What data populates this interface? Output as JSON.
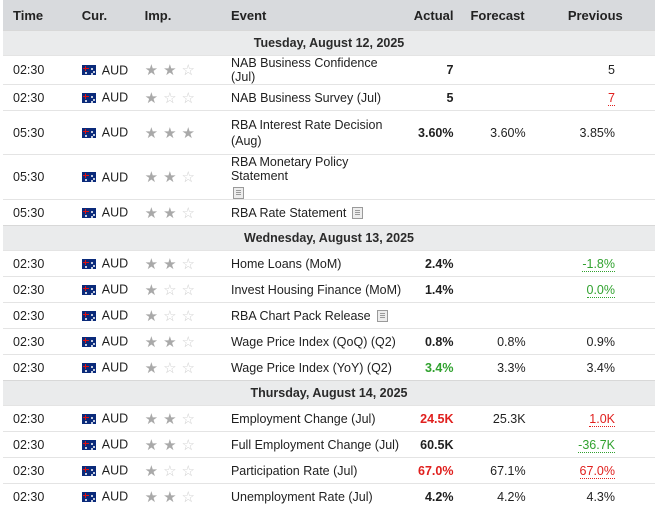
{
  "headers": {
    "time": "Time",
    "cur": "Cur.",
    "imp": "Imp.",
    "event": "Event",
    "actual": "Actual",
    "forecast": "Forecast",
    "previous": "Previous"
  },
  "colors": {
    "accent_red": "#e0201e",
    "accent_green": "#31a22f",
    "header_bg": "#d8dadd"
  },
  "days": [
    {
      "date": "Tuesday, August 12, 2025",
      "events": [
        {
          "time": "02:30",
          "cur": "AUD",
          "imp": 2,
          "event": "NAB Business Confidence (Jul)",
          "actual": "7",
          "forecast": "",
          "previous": "5"
        },
        {
          "time": "02:30",
          "cur": "AUD",
          "imp": 1,
          "event": "NAB Business Survey (Jul)",
          "actual": "5",
          "forecast": "",
          "previous": "7"
        },
        {
          "time": "05:30",
          "cur": "AUD",
          "imp": 3,
          "event": "RBA Interest Rate Decision",
          "event2": "(Aug)",
          "actual": "3.60%",
          "forecast": "3.60%",
          "previous": "3.85%"
        },
        {
          "time": "05:30",
          "cur": "AUD",
          "imp": 2,
          "event": "RBA Monetary Policy Statement",
          "event2": "",
          "actual": "",
          "forecast": "",
          "previous": ""
        },
        {
          "time": "05:30",
          "cur": "AUD",
          "imp": 2,
          "event": "RBA Rate Statement",
          "actual": "",
          "forecast": "",
          "previous": ""
        }
      ]
    },
    {
      "date": "Wednesday, August 13, 2025",
      "events": [
        {
          "time": "02:30",
          "cur": "AUD",
          "imp": 2,
          "event": "Home Loans (MoM)",
          "actual": "2.4%",
          "forecast": "",
          "previous": "-1.8%"
        },
        {
          "time": "02:30",
          "cur": "AUD",
          "imp": 1,
          "event": "Invest Housing Finance (MoM)",
          "actual": "1.4%",
          "forecast": "",
          "previous": "0.0%"
        },
        {
          "time": "02:30",
          "cur": "AUD",
          "imp": 1,
          "event": "RBA Chart Pack Release",
          "actual": "",
          "forecast": "",
          "previous": ""
        },
        {
          "time": "02:30",
          "cur": "AUD",
          "imp": 2,
          "event": "Wage Price Index (QoQ) (Q2)",
          "actual": "0.8%",
          "forecast": "0.8%",
          "previous": "0.9%"
        },
        {
          "time": "02:30",
          "cur": "AUD",
          "imp": 1,
          "event": "Wage Price Index (YoY) (Q2)",
          "actual": "3.4%",
          "forecast": "3.3%",
          "previous": "3.4%"
        }
      ]
    },
    {
      "date": "Thursday, August 14, 2025",
      "events": [
        {
          "time": "02:30",
          "cur": "AUD",
          "imp": 2,
          "event": "Employment Change (Jul)",
          "actual": "24.5K",
          "forecast": "25.3K",
          "previous": "1.0K"
        },
        {
          "time": "02:30",
          "cur": "AUD",
          "imp": 2,
          "event": "Full Employment Change (Jul)",
          "actual": "60.5K",
          "forecast": "",
          "previous": "-36.7K"
        },
        {
          "time": "02:30",
          "cur": "AUD",
          "imp": 1,
          "event": "Participation Rate (Jul)",
          "actual": "67.0%",
          "forecast": "67.1%",
          "previous": "67.0%"
        },
        {
          "time": "02:30",
          "cur": "AUD",
          "imp": 2,
          "event": "Unemployment Rate (Jul)",
          "actual": "4.2%",
          "forecast": "4.2%",
          "previous": "4.3%"
        }
      ]
    }
  ]
}
